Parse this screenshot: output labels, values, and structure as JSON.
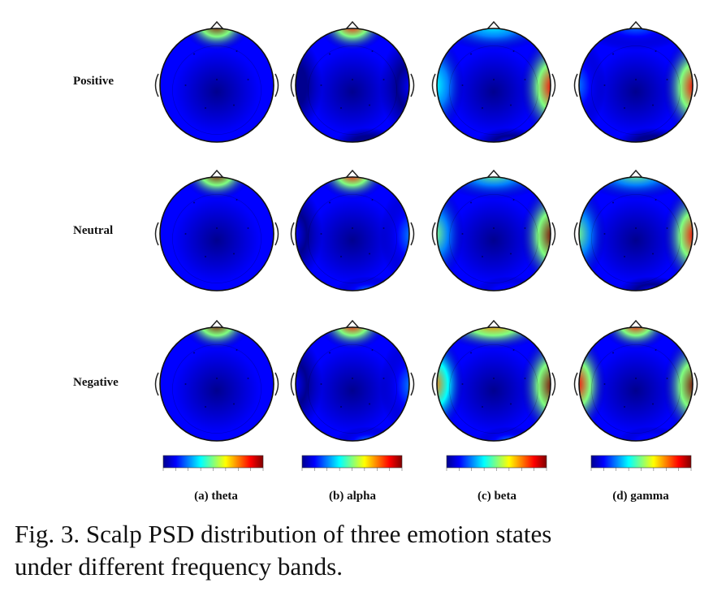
{
  "figure": {
    "rows": [
      "Positive",
      "Neutral",
      "Negative"
    ],
    "columns": [
      "(a) theta",
      "(b) alpha",
      "(c) beta",
      "(d) gamma"
    ],
    "colormap": [
      "#00008f",
      "#0000ff",
      "#0080ff",
      "#00ffff",
      "#80ff80",
      "#ffff00",
      "#ff8000",
      "#ff0000",
      "#800000"
    ],
    "maps": [
      [
        {
          "front": 0.95,
          "right": 0.0,
          "left": 0.0,
          "back": 0.0
        },
        {
          "front": 0.9,
          "right": 0.1,
          "left": 0.05,
          "back": 0.05
        },
        {
          "front": 0.35,
          "right": 0.9,
          "left": 0.35,
          "back": 0.1
        },
        {
          "front": 0.25,
          "right": 0.85,
          "left": 0.25,
          "back": 0.05
        }
      ],
      [
        {
          "front": 0.95,
          "right": 0.0,
          "left": 0.0,
          "back": 0.0
        },
        {
          "front": 0.85,
          "right": 0.2,
          "left": 0.1,
          "back": 0.2
        },
        {
          "front": 0.55,
          "right": 0.95,
          "left": 0.5,
          "back": 0.15
        },
        {
          "front": 0.5,
          "right": 0.9,
          "left": 0.45,
          "back": 0.1
        }
      ],
      [
        {
          "front": 0.95,
          "right": 0.0,
          "left": 0.0,
          "back": 0.0
        },
        {
          "front": 0.85,
          "right": 0.2,
          "left": 0.1,
          "back": 0.3
        },
        {
          "front": 0.8,
          "right": 0.95,
          "left": 0.7,
          "back": 0.2
        },
        {
          "front": 0.85,
          "right": 0.95,
          "left": 0.85,
          "back": 0.15
        }
      ]
    ]
  },
  "caption": {
    "line1": "Fig. 3. Scalp PSD distribution of three emotion states",
    "line2": "under different frequency bands."
  }
}
